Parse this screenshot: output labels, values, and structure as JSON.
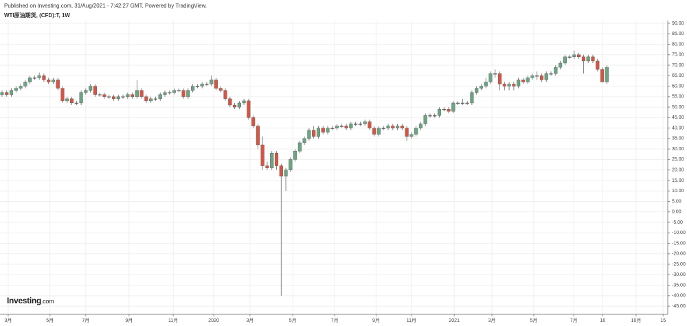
{
  "chart_data": {
    "type": "candlestick",
    "title": "WTI原油期货, (CFD):T, 1W",
    "subtitle": "Published on Investing.com, 31/Aug/2021 - 7:42:27 GMT, Powered by TradingView.",
    "brand": "Investing",
    "brand_suffix": ".com",
    "up_color": "#6ba583",
    "down_color": "#d75442",
    "grid": true,
    "xlim": [
      -0.44,
      143.1
    ],
    "ylim": [
      -48.9,
      91.3
    ],
    "xticks": [
      {
        "value": 1.33,
        "label": "3月"
      },
      {
        "value": 10.3,
        "label": "5月"
      },
      {
        "value": 18.0,
        "label": "7月"
      },
      {
        "value": 27.3,
        "label": "9月"
      },
      {
        "value": 36.8,
        "label": "11月"
      },
      {
        "value": 45.5,
        "label": "2020"
      },
      {
        "value": 53.3,
        "label": "3月"
      },
      {
        "value": 62.5,
        "label": "5月"
      },
      {
        "value": 71.5,
        "label": "7月"
      },
      {
        "value": 80.4,
        "label": "9月"
      },
      {
        "value": 88.0,
        "label": "11月"
      },
      {
        "value": 97.2,
        "label": "2021"
      },
      {
        "value": 105.3,
        "label": "3月"
      },
      {
        "value": 114.3,
        "label": "5月"
      },
      {
        "value": 122.9,
        "label": "7月"
      },
      {
        "value": 129.1,
        "label": "16"
      },
      {
        "value": 136.3,
        "label": "10月"
      },
      {
        "value": 142.1,
        "label": "15"
      }
    ],
    "yticks": [
      {
        "value": 90,
        "label": "90.00"
      },
      {
        "value": 85,
        "label": "85.00"
      },
      {
        "value": 80,
        "label": "80.00"
      },
      {
        "value": 75,
        "label": "75.00"
      },
      {
        "value": 70,
        "label": "70.00"
      },
      {
        "value": 65,
        "label": "65.00"
      },
      {
        "value": 60,
        "label": "60.00"
      },
      {
        "value": 55,
        "label": "55.00"
      },
      {
        "value": 50,
        "label": "50.00"
      },
      {
        "value": 45,
        "label": "45.00"
      },
      {
        "value": 40,
        "label": "40.00"
      },
      {
        "value": 35,
        "label": "35.00"
      },
      {
        "value": 30,
        "label": "30.00"
      },
      {
        "value": 25,
        "label": "25.00"
      },
      {
        "value": 20,
        "label": "20.00"
      },
      {
        "value": 15,
        "label": "15.00"
      },
      {
        "value": 10,
        "label": "10.00"
      },
      {
        "value": 5,
        "label": "5.00"
      },
      {
        "value": 0,
        "label": "0.00"
      },
      {
        "value": -5,
        "label": "-5.00"
      },
      {
        "value": -10,
        "label": "-10.00"
      },
      {
        "value": -15,
        "label": "-15.00"
      },
      {
        "value": -20,
        "label": "-20.00"
      },
      {
        "value": -25,
        "label": "-25.00"
      },
      {
        "value": -30,
        "label": "-30.00"
      },
      {
        "value": -35,
        "label": "-35.00"
      },
      {
        "value": -40,
        "label": "-40.00"
      },
      {
        "value": -45,
        "label": "-45.00"
      }
    ],
    "open": [
      56,
      57,
      56,
      58,
      59,
      60,
      62,
      64,
      64,
      65,
      63,
      62,
      63,
      59,
      53,
      54,
      52,
      52,
      57,
      58,
      60,
      56,
      56,
      55,
      55,
      54,
      55,
      55,
      56,
      55,
      58,
      55,
      53,
      54,
      54,
      56,
      57,
      57,
      58,
      58,
      55,
      58,
      60,
      60,
      61,
      61,
      63,
      59,
      58,
      54,
      51,
      50,
      52,
      53,
      45,
      41,
      32,
      22,
      21,
      28,
      22,
      17,
      20,
      25,
      29,
      33,
      35,
      39,
      36,
      40,
      38,
      40,
      40,
      41,
      41,
      40,
      42,
      42,
      42,
      43,
      40,
      37,
      40,
      40,
      41,
      40,
      41,
      40,
      36,
      37,
      40,
      42,
      46,
      46,
      46,
      49,
      49,
      48,
      52,
      52,
      52,
      52,
      57,
      59,
      60,
      62,
      66,
      66,
      61,
      60,
      61,
      60,
      63,
      62,
      64,
      65,
      65,
      63,
      66,
      66,
      69,
      71,
      74,
      74,
      75,
      74,
      72,
      74,
      72,
      68,
      62
    ],
    "high": [
      58,
      58,
      59,
      60,
      61,
      63,
      65,
      65,
      66.5,
      66,
      64,
      64,
      64,
      60,
      55,
      55,
      53,
      58,
      59,
      61,
      61,
      57,
      57,
      56,
      56,
      56,
      56,
      57,
      57,
      63,
      59,
      56,
      55,
      55,
      57,
      58,
      58,
      59,
      59,
      59,
      59,
      61,
      61,
      62,
      62,
      65,
      64,
      60,
      59,
      55,
      52,
      53,
      54,
      54,
      46,
      42,
      36,
      24,
      29,
      29,
      23,
      21,
      26,
      30,
      34,
      36,
      40,
      41,
      41,
      41,
      41,
      41,
      42,
      42,
      42,
      43,
      43,
      43,
      44,
      44,
      41,
      41,
      41,
      42,
      42,
      42,
      42,
      41,
      38,
      41,
      43,
      47,
      47,
      47,
      50,
      50,
      50,
      53,
      53,
      54,
      53,
      58,
      60,
      61,
      64,
      67,
      68,
      67,
      62,
      62,
      62,
      64,
      64,
      65,
      66,
      67,
      66,
      67,
      67,
      70,
      72,
      75,
      75,
      77,
      76,
      75,
      75,
      75,
      73,
      69,
      70
    ],
    "low": [
      55,
      55,
      55,
      57,
      58,
      59,
      61,
      63,
      63,
      62,
      61,
      61,
      58,
      52,
      52,
      51,
      51,
      51,
      56,
      57,
      55,
      55,
      54,
      54,
      53,
      53,
      54,
      54,
      54,
      54,
      54,
      52,
      52,
      53,
      53,
      55,
      56,
      56,
      57,
      54,
      54,
      57,
      59,
      59,
      60,
      60,
      58,
      57,
      53,
      50,
      49,
      49,
      51,
      44,
      40,
      30,
      20,
      20,
      20,
      20,
      -40,
      10,
      19,
      24,
      28,
      32,
      34,
      35,
      35,
      37,
      37,
      39,
      39,
      40,
      39,
      39,
      41,
      41,
      41,
      39,
      36,
      36,
      39,
      39,
      39,
      39,
      39,
      34,
      35,
      36,
      39,
      41,
      45,
      45,
      45,
      48,
      47,
      47,
      51,
      51,
      51,
      51,
      56,
      58,
      59,
      61,
      64,
      58,
      58,
      58,
      58,
      59,
      61,
      61,
      63,
      63,
      62,
      62,
      65,
      65,
      68,
      70,
      73,
      73,
      73,
      66,
      71,
      71,
      67,
      62,
      61
    ],
    "close": [
      57,
      56,
      58,
      59,
      60,
      62,
      64,
      64,
      65,
      63,
      62,
      63,
      59,
      53,
      54,
      52,
      52,
      57,
      58,
      60,
      56,
      56,
      55,
      55,
      54,
      55,
      55,
      56,
      55,
      58,
      55,
      53,
      54,
      54,
      56,
      57,
      57,
      58,
      58,
      55,
      58,
      60,
      60,
      61,
      61,
      63,
      59,
      58,
      54,
      51,
      50,
      52,
      53,
      45,
      41,
      32,
      22,
      21,
      28,
      22,
      17,
      20,
      25,
      29,
      33,
      35,
      39,
      36,
      40,
      38,
      40,
      40,
      41,
      41,
      40,
      42,
      42,
      42,
      43,
      40,
      37,
      40,
      40,
      41,
      40,
      41,
      40,
      36,
      37,
      40,
      42,
      46,
      46,
      46,
      49,
      49,
      48,
      52,
      52,
      52,
      52,
      57,
      59,
      60,
      62,
      66,
      66,
      61,
      60,
      61,
      60,
      63,
      62,
      64,
      65,
      65,
      63,
      66,
      66,
      69,
      71,
      74,
      74,
      75,
      74,
      72,
      74,
      72,
      68,
      62,
      69
    ]
  }
}
